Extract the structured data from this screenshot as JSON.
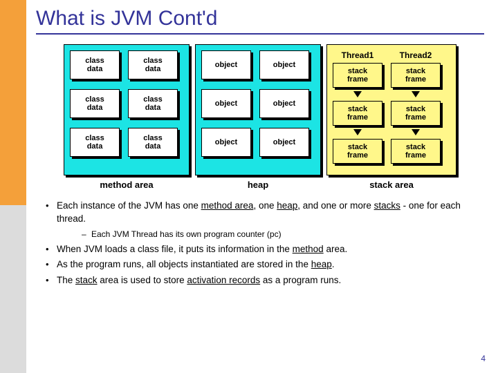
{
  "accent": {
    "top_color": "#f4a03a",
    "bottom_color": "#dcdcdc"
  },
  "title": "What is JVM Cont'd",
  "title_color": "#333399",
  "diagram": {
    "method_area": {
      "bg": "#1ce4e4",
      "cell_bg": "#ffffff",
      "cell_label": "class\ndata",
      "label": "method area"
    },
    "heap": {
      "bg": "#1ce4e4",
      "cell_bg": "#ffffff",
      "cell_label": "object",
      "label": "heap"
    },
    "stack": {
      "bg": "#fff78a",
      "thread1": "Thread1",
      "thread2": "Thread2",
      "frame_bg": "#fff78a",
      "frame_label": "stack\nframe",
      "label": "stack area"
    }
  },
  "bullets": {
    "b1_pre": "Each instance of the JVM has one ",
    "b1_u1": "method area",
    "b1_mid1": ", one ",
    "b1_u2": "heap",
    "b1_mid2": ", and one or more ",
    "b1_u3": "stacks",
    "b1_post": " - one for each thread.",
    "sub1": "Each JVM Thread has its own program counter (pc)",
    "b2_pre": "When JVM loads a class file, it puts its information in the ",
    "b2_u1": "method",
    "b2_post": " area.",
    "b3_pre": "As the program runs, all objects instantiated are stored in the ",
    "b3_u1": "heap",
    "b3_post": ".",
    "b4_pre": "The ",
    "b4_u1": "stack",
    "b4_mid": " area is used to store ",
    "b4_u2": "activation records",
    "b4_post": " as a program runs."
  },
  "page_number": "4"
}
